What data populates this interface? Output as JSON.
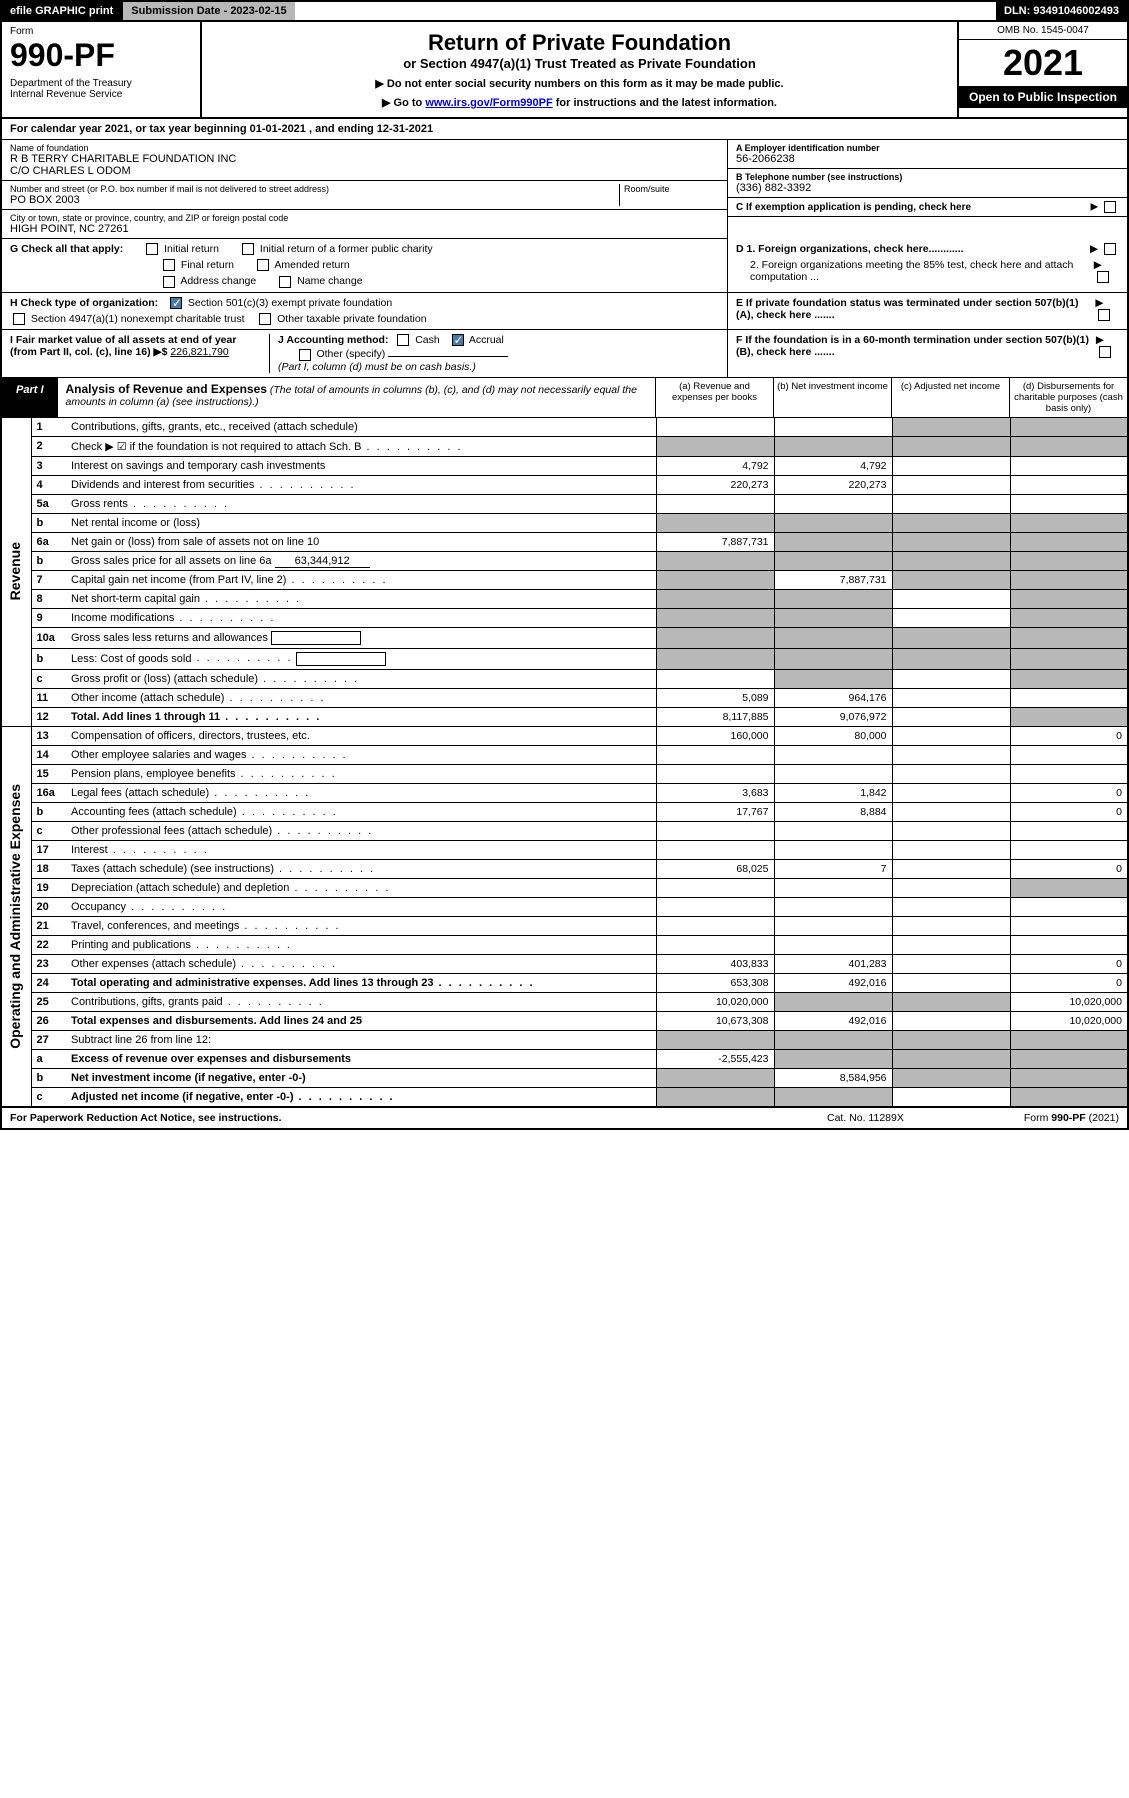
{
  "topbar": {
    "efile": "efile GRAPHIC print",
    "submission": "Submission Date - 2023-02-15",
    "dln": "DLN: 93491046002493"
  },
  "header": {
    "form_word": "Form",
    "form_num": "990-PF",
    "dept": "Department of the Treasury\nInternal Revenue Service",
    "title": "Return of Private Foundation",
    "subtitle": "or Section 4947(a)(1) Trust Treated as Private Foundation",
    "instr1": "▶ Do not enter social security numbers on this form as it may be made public.",
    "instr2": "▶ Go to ",
    "link": "www.irs.gov/Form990PF",
    "instr3": " for instructions and the latest information.",
    "omb": "OMB No. 1545-0047",
    "year": "2021",
    "open": "Open to Public Inspection"
  },
  "cal_year": "For calendar year 2021, or tax year beginning 01-01-2021                           , and ending 12-31-2021",
  "info": {
    "name_label": "Name of foundation",
    "name": "R B TERRY CHARITABLE FOUNDATION INC\nC/O CHARLES L ODOM",
    "addr_label": "Number and street (or P.O. box number if mail is not delivered to street address)",
    "addr": "PO BOX 2003",
    "room_label": "Room/suite",
    "city_label": "City or town, state or province, country, and ZIP or foreign postal code",
    "city": "HIGH POINT, NC  27261",
    "ein_label": "A Employer identification number",
    "ein": "56-2066238",
    "phone_label": "B Telephone number (see instructions)",
    "phone": "(336) 882-3392",
    "c_label": "C If exemption application is pending, check here"
  },
  "checks": {
    "g": "G Check all that apply:",
    "g1": "Initial return",
    "g2": "Initial return of a former public charity",
    "g3": "Final return",
    "g4": "Amended return",
    "g5": "Address change",
    "g6": "Name change",
    "h": "H Check type of organization:",
    "h1": "Section 501(c)(3) exempt private foundation",
    "h2": "Section 4947(a)(1) nonexempt charitable trust",
    "h3": "Other taxable private foundation",
    "d1": "D 1. Foreign organizations, check here............",
    "d2": "2. Foreign organizations meeting the 85% test, check here and attach computation ...",
    "e": "E  If private foundation status was terminated under section 507(b)(1)(A), check here .......",
    "i": "I Fair market value of all assets at end of year (from Part II, col. (c), line 16) ▶$",
    "i_val": "226,821,790",
    "j": "J Accounting method:",
    "j1": "Cash",
    "j2": "Accrual",
    "j3": "Other (specify)",
    "j_note": "(Part I, column (d) must be on cash basis.)",
    "f": "F  If the foundation is in a 60-month termination under section 507(b)(1)(B), check here ......."
  },
  "part1": {
    "label": "Part I",
    "title": "Analysis of Revenue and Expenses",
    "note": "(The total of amounts in columns (b), (c), and (d) may not necessarily equal the amounts in column (a) (see instructions).)",
    "col_a": "(a)  Revenue and expenses per books",
    "col_b": "(b)  Net investment income",
    "col_c": "(c)  Adjusted net income",
    "col_d": "(d)  Disbursements for charitable purposes (cash basis only)"
  },
  "side": {
    "rev": "Revenue",
    "exp": "Operating and Administrative Expenses"
  },
  "rows": [
    {
      "n": "1",
      "d": "Contributions, gifts, grants, etc., received (attach schedule)",
      "a": "",
      "b": "",
      "cg": true,
      "dg": true
    },
    {
      "n": "2",
      "d": "Check ▶ ☑ if the foundation is not required to attach Sch. B",
      "dots": true,
      "ag": true,
      "bg": true,
      "cg": true,
      "dg": true
    },
    {
      "n": "3",
      "d": "Interest on savings and temporary cash investments",
      "a": "4,792",
      "b": "4,792"
    },
    {
      "n": "4",
      "d": "Dividends and interest from securities",
      "dots": true,
      "a": "220,273",
      "b": "220,273"
    },
    {
      "n": "5a",
      "d": "Gross rents",
      "dots": true
    },
    {
      "n": "b",
      "d": "Net rental income or (loss)",
      "under": true,
      "ag": true,
      "bg": true,
      "cg": true,
      "dg": true
    },
    {
      "n": "6a",
      "d": "Net gain or (loss) from sale of assets not on line 10",
      "a": "7,887,731",
      "bg": true,
      "cg": true,
      "dg": true
    },
    {
      "n": "b",
      "d": "Gross sales price for all assets on line 6a",
      "extra": "63,344,912",
      "ag": true,
      "bg": true,
      "cg": true,
      "dg": true
    },
    {
      "n": "7",
      "d": "Capital gain net income (from Part IV, line 2)",
      "dots": true,
      "ag": true,
      "b": "7,887,731",
      "cg": true,
      "dg": true
    },
    {
      "n": "8",
      "d": "Net short-term capital gain",
      "dots": true,
      "ag": true,
      "bg": true,
      "dg": true
    },
    {
      "n": "9",
      "d": "Income modifications",
      "dots": true,
      "ag": true,
      "bg": true,
      "dg": true
    },
    {
      "n": "10a",
      "d": "Gross sales less returns and allowances",
      "box": true,
      "ag": true,
      "bg": true,
      "cg": true,
      "dg": true
    },
    {
      "n": "b",
      "d": "Less: Cost of goods sold",
      "dots": true,
      "box": true,
      "ag": true,
      "bg": true,
      "cg": true,
      "dg": true
    },
    {
      "n": "c",
      "d": "Gross profit or (loss) (attach schedule)",
      "dots": true,
      "bg": true,
      "dg": true
    },
    {
      "n": "11",
      "d": "Other income (attach schedule)",
      "dots": true,
      "a": "5,089",
      "b": "964,176"
    },
    {
      "n": "12",
      "d": "Total. Add lines 1 through 11",
      "dots": true,
      "bold": true,
      "a": "8,117,885",
      "b": "9,076,972",
      "dg": true
    },
    {
      "n": "13",
      "d": "Compensation of officers, directors, trustees, etc.",
      "a": "160,000",
      "b": "80,000",
      "dd": "0"
    },
    {
      "n": "14",
      "d": "Other employee salaries and wages",
      "dots": true
    },
    {
      "n": "15",
      "d": "Pension plans, employee benefits",
      "dots": true
    },
    {
      "n": "16a",
      "d": "Legal fees (attach schedule)",
      "dots": true,
      "a": "3,683",
      "b": "1,842",
      "dd": "0"
    },
    {
      "n": "b",
      "d": "Accounting fees (attach schedule)",
      "dots": true,
      "a": "17,767",
      "b": "8,884",
      "dd": "0"
    },
    {
      "n": "c",
      "d": "Other professional fees (attach schedule)",
      "dots": true
    },
    {
      "n": "17",
      "d": "Interest",
      "dots": true
    },
    {
      "n": "18",
      "d": "Taxes (attach schedule) (see instructions)",
      "dots": true,
      "a": "68,025",
      "b": "7",
      "dd": "0"
    },
    {
      "n": "19",
      "d": "Depreciation (attach schedule) and depletion",
      "dots": true,
      "dg": true
    },
    {
      "n": "20",
      "d": "Occupancy",
      "dots": true
    },
    {
      "n": "21",
      "d": "Travel, conferences, and meetings",
      "dots": true
    },
    {
      "n": "22",
      "d": "Printing and publications",
      "dots": true
    },
    {
      "n": "23",
      "d": "Other expenses (attach schedule)",
      "dots": true,
      "a": "403,833",
      "b": "401,283",
      "dd": "0"
    },
    {
      "n": "24",
      "d": "Total operating and administrative expenses. Add lines 13 through 23",
      "dots": true,
      "bold": true,
      "a": "653,308",
      "b": "492,016",
      "dd": "0"
    },
    {
      "n": "25",
      "d": "Contributions, gifts, grants paid",
      "dots": true,
      "a": "10,020,000",
      "bg": true,
      "cg": true,
      "dd": "10,020,000"
    },
    {
      "n": "26",
      "d": "Total expenses and disbursements. Add lines 24 and 25",
      "bold": true,
      "a": "10,673,308",
      "b": "492,016",
      "dd": "10,020,000"
    },
    {
      "n": "27",
      "d": "Subtract line 26 from line 12:",
      "ag": true,
      "bg": true,
      "cg": true,
      "dg": true
    },
    {
      "n": "a",
      "d": "Excess of revenue over expenses and disbursements",
      "bold": true,
      "a": "-2,555,423",
      "bg": true,
      "cg": true,
      "dg": true
    },
    {
      "n": "b",
      "d": "Net investment income (if negative, enter -0-)",
      "bold": true,
      "ag": true,
      "b": "8,584,956",
      "cg": true,
      "dg": true
    },
    {
      "n": "c",
      "d": "Adjusted net income (if negative, enter -0-)",
      "dots": true,
      "bold": true,
      "ag": true,
      "bg": true,
      "dg": true
    }
  ],
  "footer": {
    "left": "For Paperwork Reduction Act Notice, see instructions.",
    "mid": "Cat. No. 11289X",
    "right": "Form 990-PF (2021)"
  }
}
